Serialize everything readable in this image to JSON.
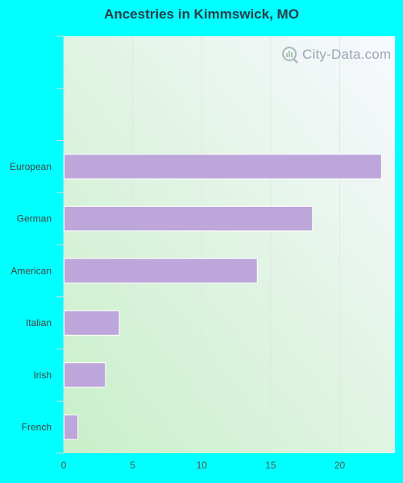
{
  "chart_data": {
    "type": "bar",
    "orientation": "horizontal",
    "title": "Ancestries in Kimmswick, MO",
    "categories": [
      "European",
      "German",
      "American",
      "Italian",
      "Irish",
      "French"
    ],
    "values": [
      23,
      18,
      14,
      4,
      3,
      1
    ],
    "xlabel": "",
    "ylabel": "",
    "xlim": [
      0,
      24
    ],
    "xticks": [
      0,
      5,
      10,
      15,
      20
    ],
    "grid": true,
    "bar_color": "#bda7da"
  },
  "watermark": {
    "text": "City-Data.com",
    "icon": "city-data-logo-icon"
  },
  "colors": {
    "background": "#00ffff",
    "plot_gradient_start": "#c8f0c8",
    "plot_gradient_end": "#f8f8ff"
  }
}
